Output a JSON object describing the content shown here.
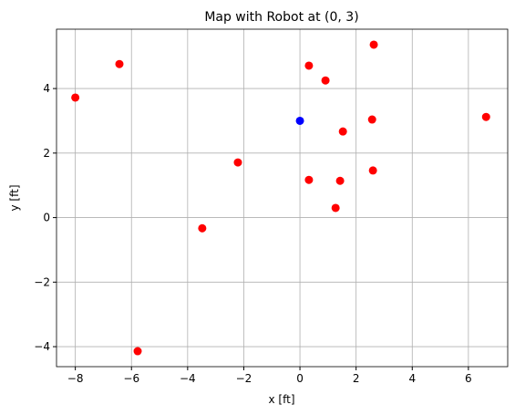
{
  "chart_data": {
    "type": "scatter",
    "title": "Map with Robot at (0, 3)",
    "x_label": "x [ft]",
    "y_label": "y [ft]",
    "xlim": [
      -8.67,
      7.4
    ],
    "ylim": [
      -4.62,
      5.84
    ],
    "xticks": [
      {
        "value": -8,
        "label": "−8"
      },
      {
        "value": -6,
        "label": "−6"
      },
      {
        "value": -4,
        "label": "−4"
      },
      {
        "value": -2,
        "label": "−2"
      },
      0,
      2,
      4,
      6
    ],
    "yticks": [
      {
        "value": -4,
        "label": "−4"
      },
      {
        "value": -2,
        "label": "−2"
      },
      0,
      2,
      4
    ],
    "grid": true,
    "series": [
      {
        "color": "#ff0000",
        "x": [
          -8.0,
          -6.43,
          2.63,
          0.32,
          0.91,
          2.57,
          6.63,
          1.53,
          -2.21,
          2.6,
          0.32,
          1.43,
          1.27,
          -3.48,
          -5.78
        ],
        "y": [
          3.72,
          4.76,
          5.36,
          4.71,
          4.25,
          3.04,
          3.12,
          2.67,
          1.71,
          1.46,
          1.17,
          1.14,
          0.3,
          -0.33,
          -4.14
        ]
      },
      {
        "color": "#0000ff",
        "x": [
          0
        ],
        "y": [
          3
        ]
      }
    ]
  }
}
